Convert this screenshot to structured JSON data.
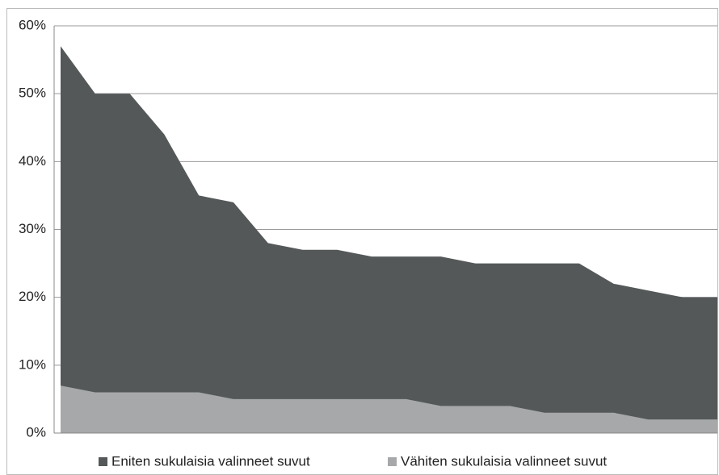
{
  "chart_data": {
    "type": "area",
    "categories": [
      null,
      null,
      null,
      null,
      null,
      null,
      null,
      null,
      null,
      null,
      null,
      null,
      null,
      null,
      null,
      null,
      null,
      null,
      null,
      null
    ],
    "series": [
      {
        "name": "Eniten sukulaisia valinneet suvut",
        "color": "#545859",
        "values": [
          57,
          50,
          50,
          44,
          35,
          34,
          28,
          27,
          27,
          26,
          26,
          26,
          25,
          25,
          25,
          25,
          22,
          21,
          20,
          20
        ]
      },
      {
        "name": "Vähiten sukulaisia valinneet suvut",
        "color": "#a6a8a9",
        "values": [
          7,
          6,
          6,
          6,
          6,
          5,
          5,
          5,
          5,
          5,
          5,
          4,
          4,
          4,
          3,
          3,
          3,
          2,
          2,
          2
        ]
      }
    ],
    "ylim": [
      0,
      60
    ],
    "yticks": [
      {
        "value": 0,
        "label": "0%"
      },
      {
        "value": 10,
        "label": "10%"
      },
      {
        "value": 20,
        "label": "20%"
      },
      {
        "value": 30,
        "label": "30%"
      },
      {
        "value": 40,
        "label": "40%"
      },
      {
        "value": 50,
        "label": "50%"
      },
      {
        "value": 60,
        "label": "60%"
      }
    ],
    "grid": true,
    "legend": "bottom"
  }
}
